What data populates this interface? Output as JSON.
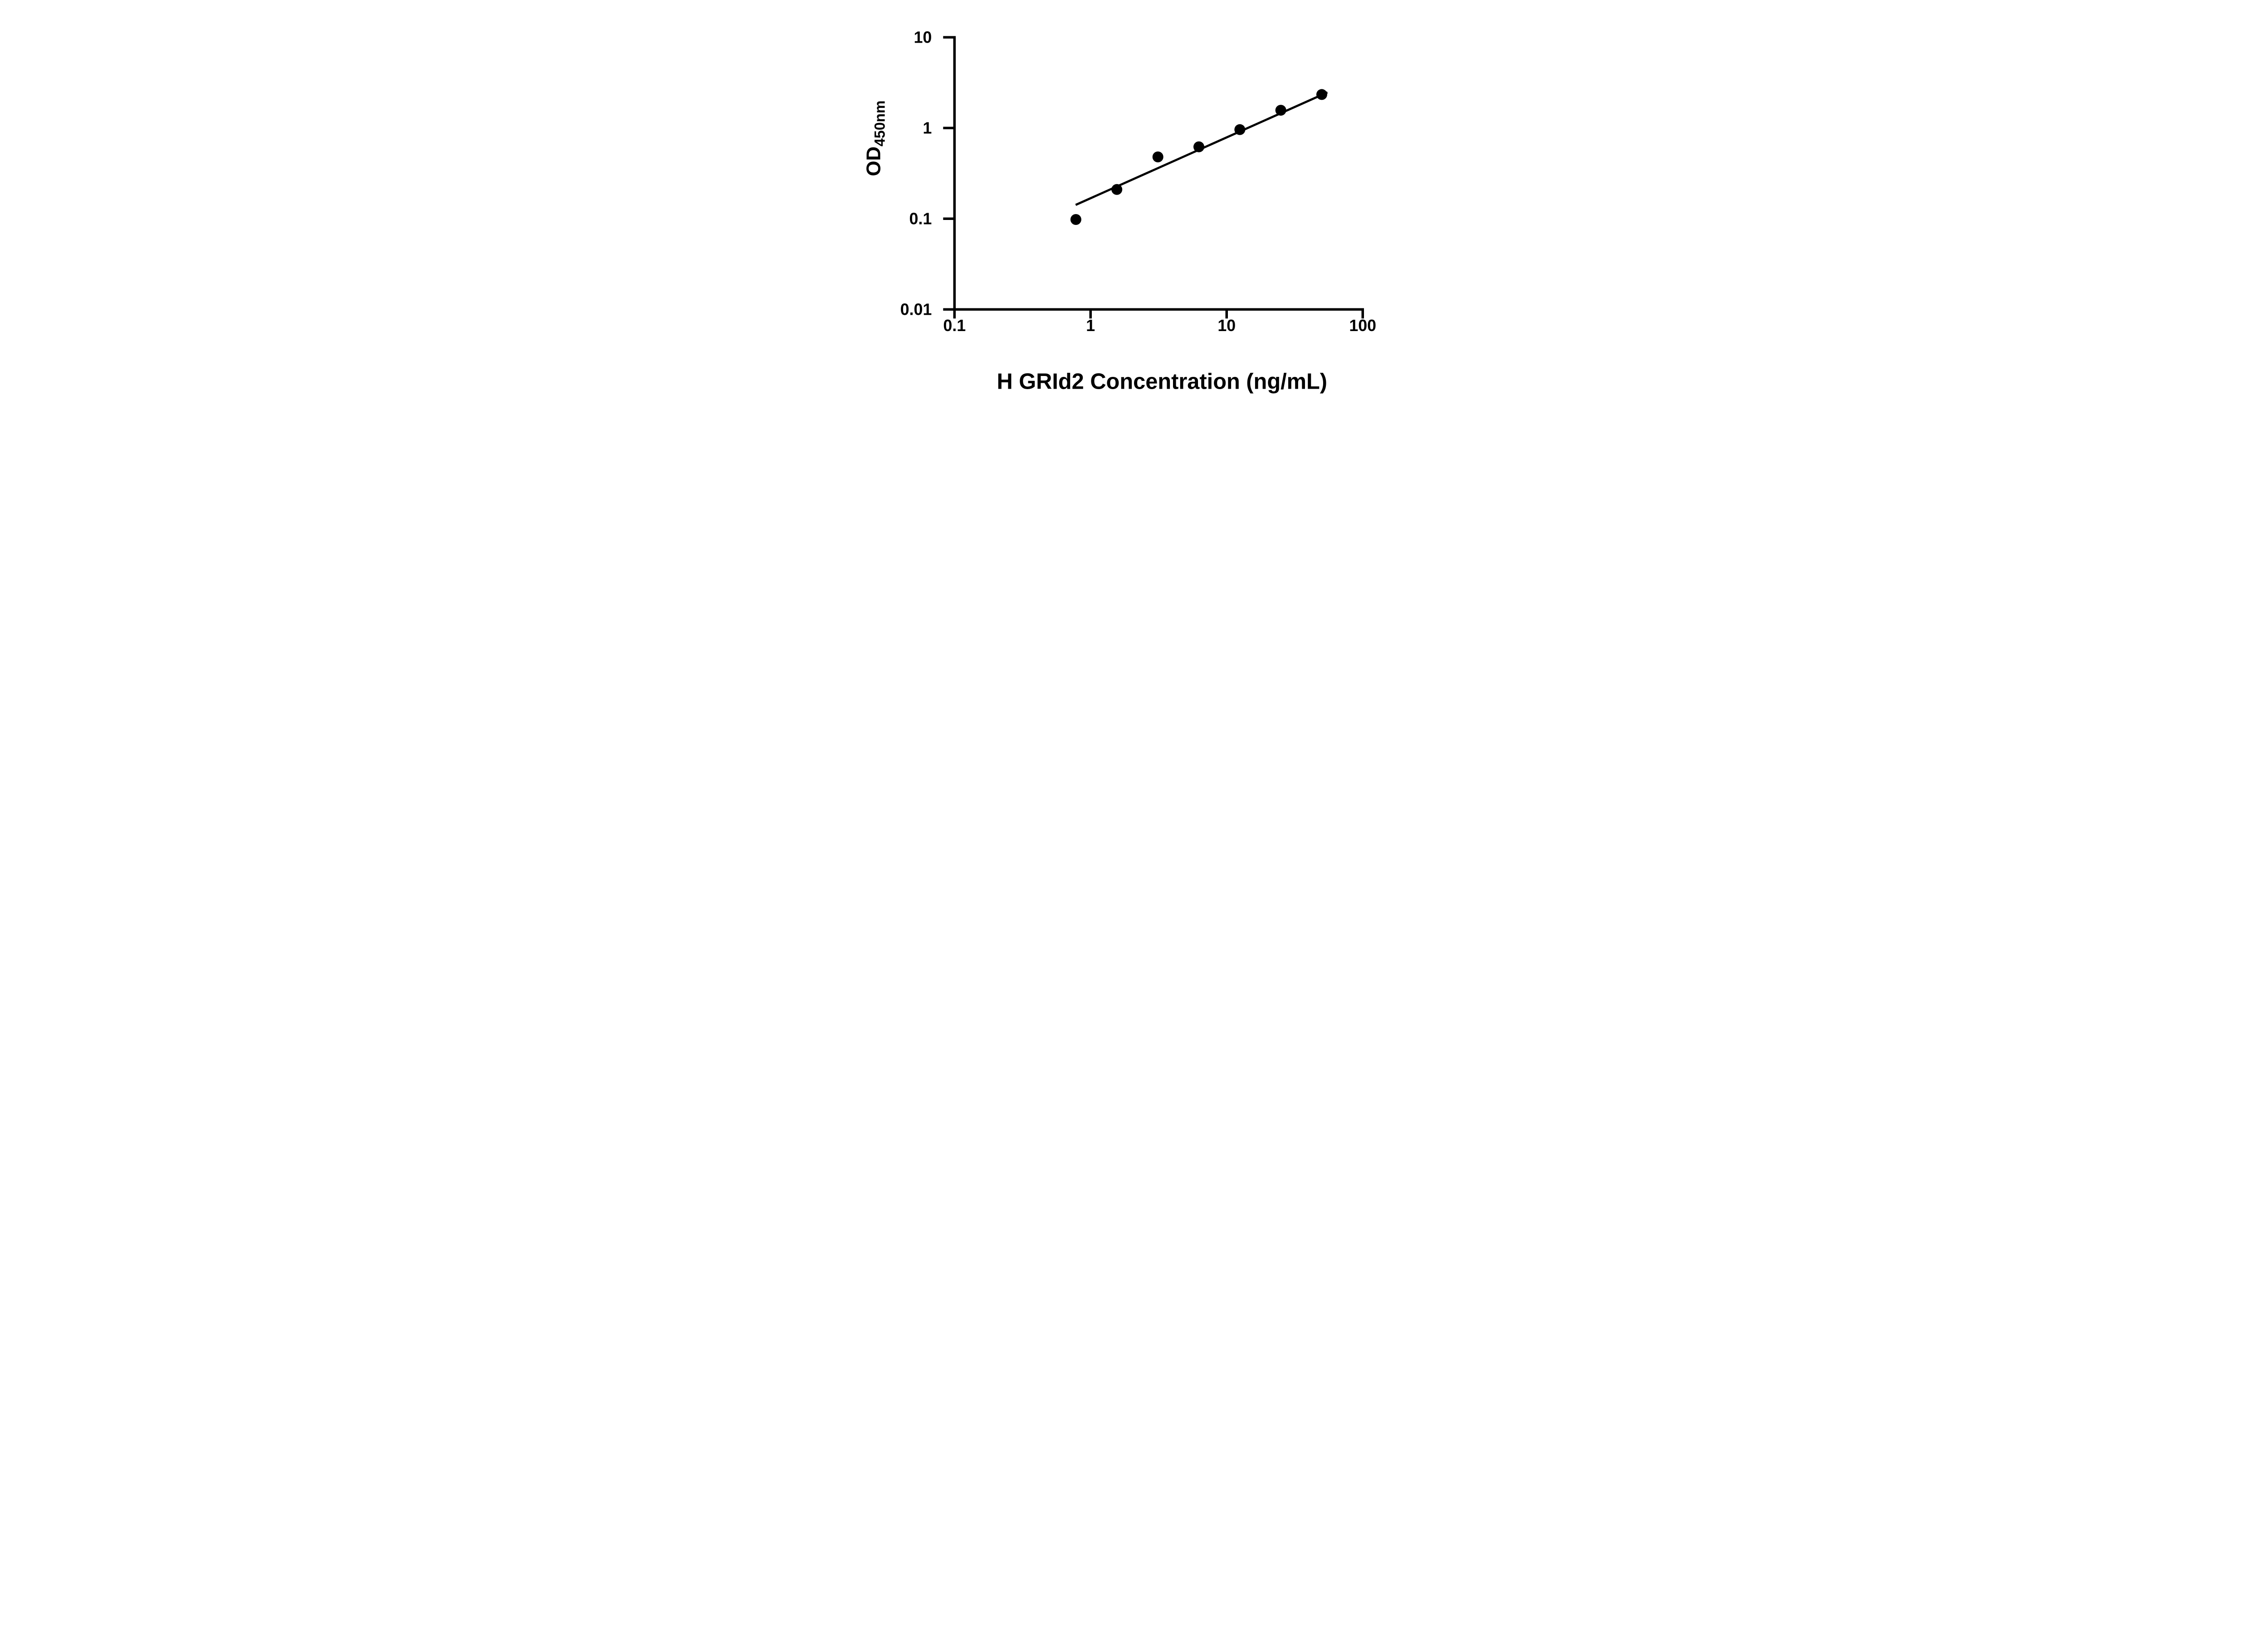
{
  "colors": {
    "ink": "#000000",
    "background": "#ffffff"
  },
  "chart_data": {
    "type": "scatter",
    "title": "",
    "xlabel": "H GRId2 Concentration (ng/mL)",
    "ylabel": "OD450nm",
    "ylabel_main": "OD",
    "ylabel_sub": "450nm",
    "xscale": "log",
    "yscale": "log",
    "xlim": [
      0.1,
      100
    ],
    "ylim": [
      0.01,
      10
    ],
    "grid": false,
    "legend": null,
    "x_ticks": [
      {
        "value": 0.1,
        "label": "0.1"
      },
      {
        "value": 1,
        "label": "1"
      },
      {
        "value": 10,
        "label": "10"
      },
      {
        "value": 100,
        "label": "100"
      }
    ],
    "y_ticks": [
      {
        "value": 10,
        "label": "10"
      },
      {
        "value": 1,
        "label": "1"
      },
      {
        "value": 0.1,
        "label": "0.1"
      },
      {
        "value": 0.01,
        "label": "0.01"
      }
    ],
    "points": [
      {
        "x": 0.78,
        "y": 0.098
      },
      {
        "x": 1.56,
        "y": 0.21
      },
      {
        "x": 3.125,
        "y": 0.48
      },
      {
        "x": 6.25,
        "y": 0.62
      },
      {
        "x": 12.5,
        "y": 0.96
      },
      {
        "x": 25,
        "y": 1.57
      },
      {
        "x": 50,
        "y": 2.34
      }
    ],
    "trendline": {
      "x1": 0.777,
      "y1": 0.142,
      "x2": 55,
      "y2": 2.47
    },
    "marker": {
      "shape": "circle",
      "fill": "#000000"
    }
  }
}
